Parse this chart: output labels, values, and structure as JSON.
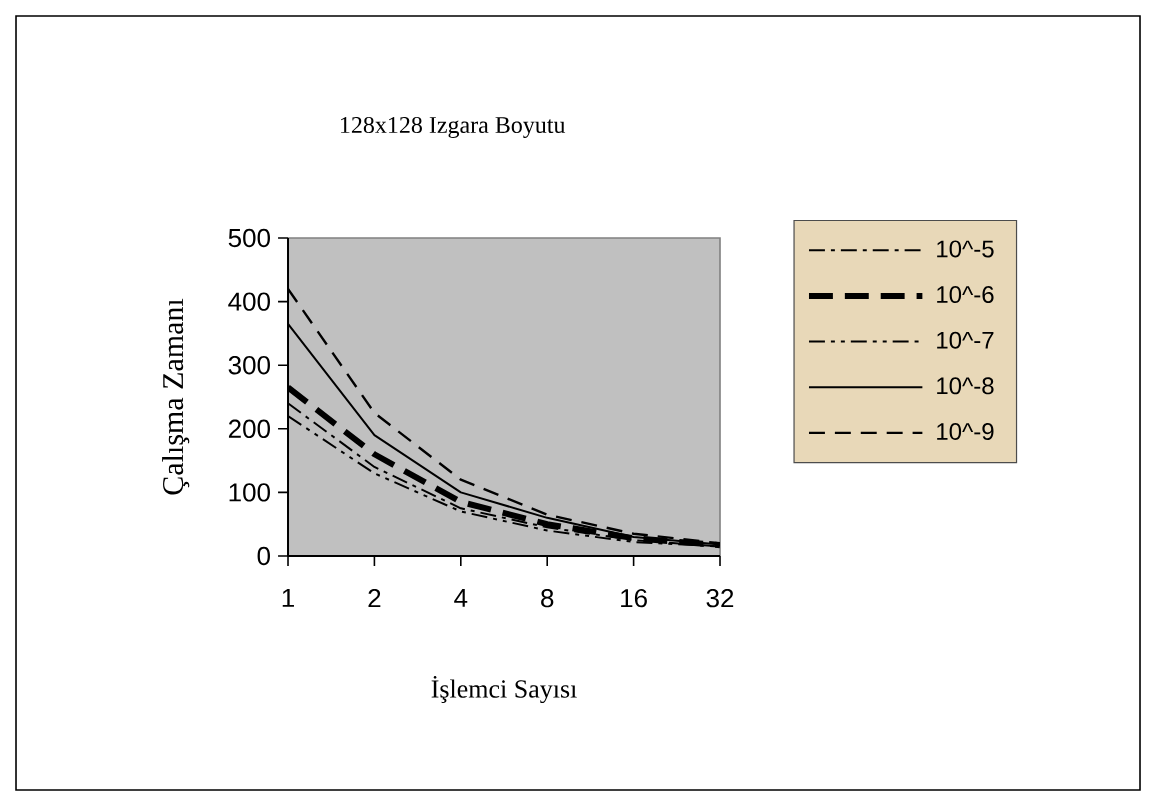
{
  "chart_data": {
    "type": "line",
    "title": "128x128 Izgara Boyutu",
    "xlabel": "İşlemci  Sayısı",
    "ylabel": "Çalışma Zamanı",
    "categories": [
      "1",
      "2",
      "4",
      "8",
      "16",
      "32"
    ],
    "ylim": [
      0,
      500
    ],
    "yticks": [
      0,
      100,
      200,
      300,
      400,
      500
    ],
    "grid": false,
    "legend": "right",
    "marker": "none",
    "series": [
      {
        "name": "10^-5",
        "color": "#000000",
        "line_style": "dashdot",
        "values": [
          240,
          140,
          75,
          45,
          25,
          15
        ]
      },
      {
        "name": "10^-6",
        "color": "#000000",
        "line_style": "longdashed",
        "values": [
          265,
          160,
          85,
          50,
          28,
          17
        ]
      },
      {
        "name": "10^-7",
        "color": "#000000",
        "line_style": "dashdotdot",
        "values": [
          220,
          130,
          70,
          40,
          22,
          15
        ]
      },
      {
        "name": "10^-8",
        "color": "#000000",
        "line_style": "solid",
        "values": [
          365,
          190,
          100,
          60,
          30,
          18
        ]
      },
      {
        "name": "10^-9",
        "color": "#000000",
        "line_style": "dashed",
        "values": [
          420,
          225,
          120,
          65,
          35,
          20
        ]
      }
    ]
  }
}
